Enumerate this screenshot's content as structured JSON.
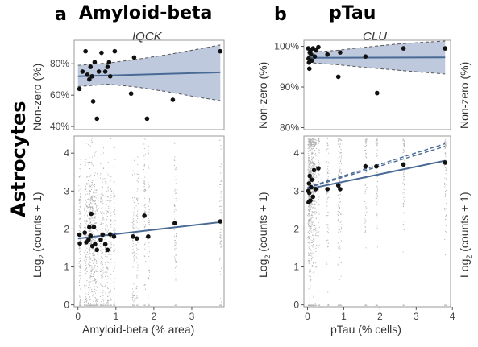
{
  "cell_type": "Astrocytes",
  "panels": [
    {
      "letter": "a",
      "title": "Amyloid-beta",
      "gene": "IQCK",
      "x_label": "Amyloid-beta (% area)",
      "top_y_label": "Non-zero (%)",
      "bottom_y_label_prefix": "Log",
      "bottom_y_label_sub": "2",
      "bottom_y_label_suffix": " (counts + 1)"
    },
    {
      "letter": "b",
      "title": "pTau",
      "gene": "CLU",
      "x_label": "pTau (% cells)",
      "top_y_label": "Non-zero (%)",
      "bottom_y_label_prefix": "Log",
      "bottom_y_label_sub": "2",
      "bottom_y_label_suffix": " (counts + 1)"
    }
  ],
  "colors": {
    "fit_line": "#4a6a96",
    "ci_band": "#b7c3d9",
    "point": "#111111",
    "panel_border": "#999999"
  },
  "chart_data": [
    {
      "id": "a-top",
      "type": "scatter",
      "title": "IQCK",
      "xlabel": "",
      "ylabel": "Non-zero (%)",
      "xlim": [
        -0.1,
        3.85
      ],
      "ylim": [
        38,
        95
      ],
      "yticks": [
        40,
        60,
        80
      ],
      "ytick_labels": [
        "40%",
        "60%",
        "80%"
      ],
      "fit": {
        "x": [
          0.0,
          3.75
        ],
        "y": [
          72,
          74.5
        ]
      },
      "ci": {
        "x": [
          0.0,
          0.8,
          1.6,
          2.4,
          3.2,
          3.75
        ],
        "upper": [
          79,
          80.5,
          83,
          86,
          89.5,
          92
        ],
        "lower": [
          65.5,
          67,
          65,
          62,
          58.5,
          56.5
        ]
      },
      "points": [
        {
          "x": 0.04,
          "y": 64
        },
        {
          "x": 0.12,
          "y": 75
        },
        {
          "x": 0.2,
          "y": 88
        },
        {
          "x": 0.25,
          "y": 73
        },
        {
          "x": 0.3,
          "y": 70
        },
        {
          "x": 0.33,
          "y": 78
        },
        {
          "x": 0.37,
          "y": 72
        },
        {
          "x": 0.4,
          "y": 56
        },
        {
          "x": 0.44,
          "y": 81
        },
        {
          "x": 0.5,
          "y": 45
        },
        {
          "x": 0.55,
          "y": 75
        },
        {
          "x": 0.62,
          "y": 87
        },
        {
          "x": 0.72,
          "y": 75
        },
        {
          "x": 0.78,
          "y": 78
        },
        {
          "x": 0.82,
          "y": 81
        },
        {
          "x": 0.85,
          "y": 72
        },
        {
          "x": 0.97,
          "y": 88
        },
        {
          "x": 1.4,
          "y": 61
        },
        {
          "x": 1.48,
          "y": 84
        },
        {
          "x": 1.82,
          "y": 45
        },
        {
          "x": 2.5,
          "y": 57
        },
        {
          "x": 3.75,
          "y": 88
        }
      ]
    },
    {
      "id": "a-bottom",
      "type": "scatter",
      "xlabel": "Amyloid-beta (% area)",
      "ylabel": "Log2 (counts + 1)",
      "xlim": [
        -0.1,
        3.85
      ],
      "ylim": [
        -0.05,
        4.45
      ],
      "xticks": [
        0,
        1,
        2,
        3
      ],
      "yticks": [
        0,
        1,
        2,
        3,
        4
      ],
      "fit": {
        "x": [
          0.0,
          3.75
        ],
        "y": [
          1.75,
          2.18
        ]
      },
      "points": [
        {
          "x": 0.04,
          "y": 1.85
        },
        {
          "x": 0.05,
          "y": 1.62
        },
        {
          "x": 0.18,
          "y": 1.9
        },
        {
          "x": 0.22,
          "y": 1.65
        },
        {
          "x": 0.28,
          "y": 1.72
        },
        {
          "x": 0.3,
          "y": 2.05
        },
        {
          "x": 0.33,
          "y": 1.82
        },
        {
          "x": 0.35,
          "y": 2.4
        },
        {
          "x": 0.38,
          "y": 1.55
        },
        {
          "x": 0.42,
          "y": 2.05
        },
        {
          "x": 0.45,
          "y": 1.6
        },
        {
          "x": 0.5,
          "y": 1.45
        },
        {
          "x": 0.6,
          "y": 1.72
        },
        {
          "x": 0.65,
          "y": 1.85
        },
        {
          "x": 0.72,
          "y": 1.6
        },
        {
          "x": 0.78,
          "y": 1.45
        },
        {
          "x": 0.85,
          "y": 1.86
        },
        {
          "x": 0.95,
          "y": 1.8
        },
        {
          "x": 1.45,
          "y": 1.8
        },
        {
          "x": 1.55,
          "y": 1.75
        },
        {
          "x": 1.75,
          "y": 2.35
        },
        {
          "x": 1.85,
          "y": 1.8
        },
        {
          "x": 2.55,
          "y": 2.15
        },
        {
          "x": 3.75,
          "y": 2.2
        }
      ]
    },
    {
      "id": "b-top",
      "type": "scatter",
      "title": "CLU",
      "xlabel": "",
      "ylabel": "Non-zero (%)",
      "xlim": [
        -0.1,
        3.95
      ],
      "ylim": [
        79.5,
        101.5
      ],
      "yticks": [
        80,
        90,
        100
      ],
      "ytick_labels": [
        "80%",
        "90%",
        "100%"
      ],
      "fit": {
        "x": [
          0.0,
          3.8
        ],
        "y": [
          97.2,
          97.3
        ]
      },
      "ci": {
        "x": [
          0.0,
          0.8,
          1.6,
          2.4,
          3.2,
          3.8
        ],
        "upper": [
          98.5,
          99,
          99.8,
          100.5,
          101,
          101.3
        ],
        "lower": [
          96,
          95.5,
          94.8,
          94.2,
          93.6,
          93.2
        ]
      },
      "points": [
        {
          "x": 0.02,
          "y": 99.5
        },
        {
          "x": 0.03,
          "y": 97
        },
        {
          "x": 0.04,
          "y": 96
        },
        {
          "x": 0.05,
          "y": 94.5
        },
        {
          "x": 0.06,
          "y": 98.5
        },
        {
          "x": 0.08,
          "y": 99
        },
        {
          "x": 0.1,
          "y": 98
        },
        {
          "x": 0.12,
          "y": 96.5
        },
        {
          "x": 0.15,
          "y": 99.5
        },
        {
          "x": 0.2,
          "y": 97.5
        },
        {
          "x": 0.24,
          "y": 99
        },
        {
          "x": 0.3,
          "y": 99.8
        },
        {
          "x": 0.55,
          "y": 98
        },
        {
          "x": 0.85,
          "y": 92.5
        },
        {
          "x": 0.9,
          "y": 98.5
        },
        {
          "x": 1.6,
          "y": 97.5
        },
        {
          "x": 1.92,
          "y": 88.5
        },
        {
          "x": 2.65,
          "y": 99.5
        },
        {
          "x": 3.8,
          "y": 99.5
        }
      ]
    },
    {
      "id": "b-bottom",
      "type": "scatter",
      "xlabel": "pTau (% cells)",
      "ylabel": "Log2 (counts + 1)",
      "xlim": [
        -0.1,
        3.95
      ],
      "ylim": [
        -0.05,
        4.45
      ],
      "xticks": [
        0,
        1,
        2,
        3,
        4
      ],
      "yticks": [
        0,
        1,
        2,
        3,
        4
      ],
      "fit": {
        "x": [
          0.0,
          3.8
        ],
        "y": [
          3.05,
          3.8
        ]
      },
      "fit_dashed": [
        {
          "x": [
            0.0,
            3.8
          ],
          "y": [
            3.1,
            4.25
          ]
        },
        {
          "x": [
            0.0,
            3.8
          ],
          "y": [
            3.08,
            4.18
          ]
        }
      ],
      "points": [
        {
          "x": 0.02,
          "y": 3.0
        },
        {
          "x": 0.03,
          "y": 2.7
        },
        {
          "x": 0.04,
          "y": 3.2
        },
        {
          "x": 0.05,
          "y": 2.95
        },
        {
          "x": 0.06,
          "y": 3.4
        },
        {
          "x": 0.08,
          "y": 2.75
        },
        {
          "x": 0.1,
          "y": 3.1
        },
        {
          "x": 0.12,
          "y": 3.3
        },
        {
          "x": 0.15,
          "y": 2.85
        },
        {
          "x": 0.18,
          "y": 3.55
        },
        {
          "x": 0.22,
          "y": 3.05
        },
        {
          "x": 0.3,
          "y": 3.6
        },
        {
          "x": 0.55,
          "y": 3.05
        },
        {
          "x": 0.85,
          "y": 3.15
        },
        {
          "x": 0.9,
          "y": 3.05
        },
        {
          "x": 1.6,
          "y": 3.65
        },
        {
          "x": 1.9,
          "y": 3.65
        },
        {
          "x": 2.65,
          "y": 3.7
        },
        {
          "x": 3.8,
          "y": 3.75
        }
      ]
    }
  ]
}
